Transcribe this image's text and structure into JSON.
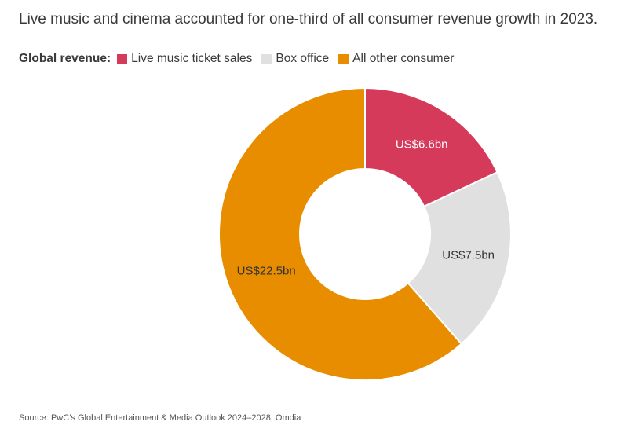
{
  "title": "Live music and cinema accounted for one-third of all consumer revenue growth in 2023.",
  "legend": {
    "label": "Global revenue:",
    "position": "top-left"
  },
  "source": "Source: PwC’s Global Entertainment & Media Outlook 2024–2028, Omdia",
  "chart_data": {
    "type": "pie",
    "subtype": "donut",
    "title": "Live music and cinema accounted for one-third of all consumer revenue growth in 2023.",
    "unit": "US$bn",
    "slices": [
      {
        "name": "Live music ticket sales",
        "value": 6.6,
        "label": "US$6.6bn",
        "color": "#d63a5b",
        "label_color": "#ffffff"
      },
      {
        "name": "Box office",
        "value": 7.5,
        "label": "US$7.5bn",
        "color": "#e0e0e0",
        "label_color": "#333333"
      },
      {
        "name": "All other consumer",
        "value": 22.5,
        "label": "US$22.5bn",
        "color": "#e88c00",
        "label_color": "#333333"
      }
    ]
  }
}
